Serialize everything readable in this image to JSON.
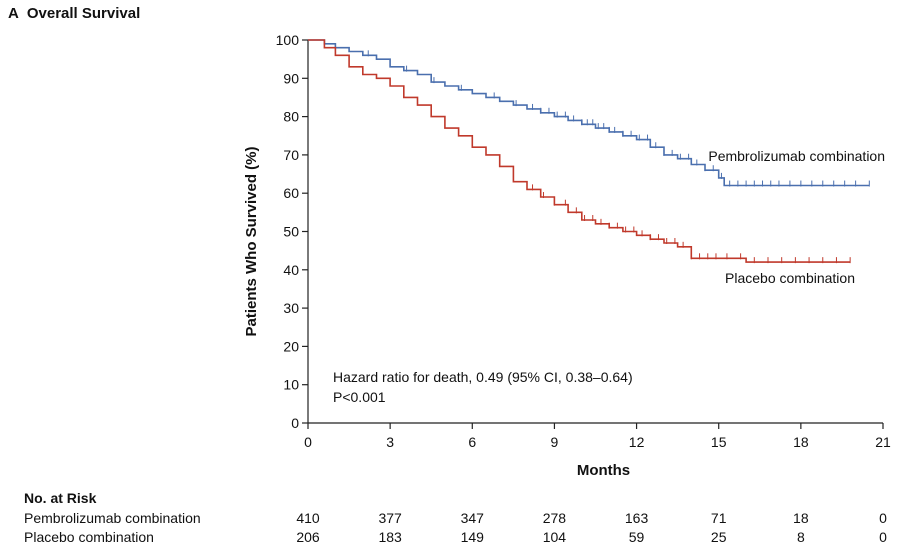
{
  "figure": {
    "panel_letter": "A",
    "title": "Overall Survival"
  },
  "chart_data": {
    "type": "line",
    "xlabel": "Months",
    "ylabel": "Patients Who Survived (%)",
    "xlim": [
      0,
      21
    ],
    "ylim": [
      0,
      100
    ],
    "xticks": [
      0,
      3,
      6,
      9,
      12,
      15,
      18,
      21
    ],
    "yticks": [
      0,
      10,
      20,
      30,
      40,
      50,
      60,
      70,
      80,
      90,
      100
    ],
    "series": [
      {
        "name": "Pembrolizumab combination",
        "color": "#4a6fae",
        "x": [
          0,
          0.3,
          0.6,
          1.0,
          1.5,
          2.0,
          2.5,
          3.0,
          3.5,
          4.0,
          4.5,
          5.0,
          5.5,
          6.0,
          6.5,
          7.0,
          7.5,
          8.0,
          8.5,
          9.0,
          9.5,
          10.0,
          10.5,
          11.0,
          11.5,
          12.0,
          12.5,
          13.0,
          13.5,
          14.0,
          14.5,
          15.0,
          15.2,
          16.0,
          17.0,
          18.0,
          19.0,
          20.0,
          20.5
        ],
        "y": [
          100,
          100,
          99,
          98,
          97,
          96,
          95,
          93,
          92,
          91,
          89,
          88,
          87,
          86,
          85,
          84,
          83,
          82,
          81,
          80,
          79,
          78,
          77,
          76,
          75,
          74,
          72,
          70,
          69,
          67.5,
          66,
          64,
          62,
          62,
          62,
          62,
          62,
          62,
          62
        ],
        "censor_x": [
          2.2,
          3.6,
          4.6,
          5.6,
          6.8,
          7.6,
          8.2,
          8.5,
          8.8,
          9.1,
          9.4,
          9.7,
          10.0,
          10.2,
          10.4,
          10.6,
          10.8,
          11.0,
          11.2,
          11.5,
          11.8,
          12.1,
          12.4,
          12.7,
          13.0,
          13.3,
          13.6,
          13.9,
          14.2,
          14.5,
          14.8,
          15.1,
          15.4,
          15.7,
          16.0,
          16.3,
          16.6,
          16.9,
          17.2,
          17.6,
          18.0,
          18.4,
          18.8,
          19.2,
          19.6,
          20.0,
          20.5
        ]
      },
      {
        "name": "Placebo combination",
        "color": "#c0392b",
        "x": [
          0,
          0.3,
          0.6,
          1.0,
          1.5,
          2.0,
          2.5,
          3.0,
          3.5,
          4.0,
          4.5,
          5.0,
          5.5,
          6.0,
          6.5,
          7.0,
          7.5,
          8.0,
          8.5,
          9.0,
          9.5,
          10.0,
          10.5,
          11.0,
          11.5,
          12.0,
          12.5,
          13.0,
          13.5,
          14.0,
          15.0,
          16.0,
          17.0,
          18.0,
          19.0,
          19.8
        ],
        "y": [
          100,
          100,
          98,
          96,
          93,
          91,
          90,
          88,
          85,
          83,
          80,
          77,
          75,
          72,
          70,
          67,
          63,
          61,
          59,
          57,
          55,
          53,
          52,
          51,
          50,
          49,
          48,
          47,
          46,
          43,
          43,
          42,
          42,
          42,
          42,
          42
        ],
        "censor_x": [
          8.2,
          8.6,
          9.0,
          9.4,
          9.8,
          10.1,
          10.4,
          10.7,
          11.0,
          11.3,
          11.6,
          11.9,
          12.2,
          12.5,
          12.8,
          13.1,
          13.4,
          13.7,
          14.0,
          14.3,
          14.6,
          14.9,
          15.3,
          15.8,
          16.3,
          16.8,
          17.3,
          17.8,
          18.3,
          18.8,
          19.3,
          19.8
        ]
      }
    ],
    "series_labels": [
      "Pembrolizumab combination",
      "Placebo combination"
    ],
    "annotation_lines": [
      "Hazard ratio for death, 0.49 (95% CI, 0.38–0.64)",
      "P<0.001"
    ]
  },
  "risk_table": {
    "title": "No. at Risk",
    "timepoints": [
      0,
      3,
      6,
      9,
      12,
      15,
      18,
      21
    ],
    "rows": [
      {
        "label": "Pembrolizumab combination",
        "values": [
          "410",
          "377",
          "347",
          "278",
          "163",
          "71",
          "18",
          "0"
        ]
      },
      {
        "label": "Placebo combination",
        "values": [
          "206",
          "183",
          "149",
          "104",
          "59",
          "25",
          "8",
          "0"
        ]
      }
    ]
  }
}
